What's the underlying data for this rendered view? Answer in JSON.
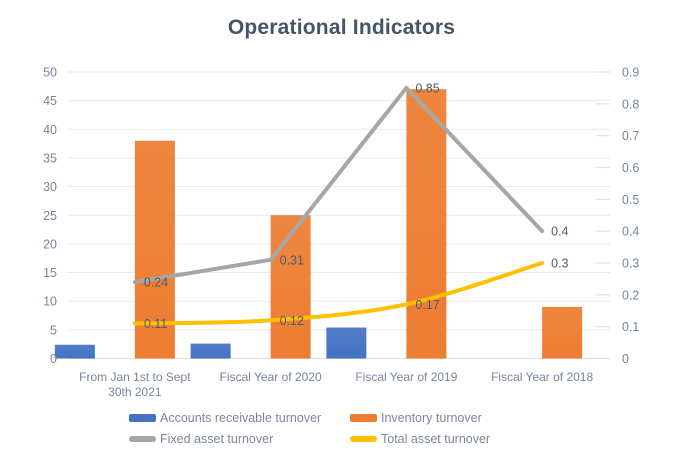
{
  "title": "Operational Indicators",
  "colors": {
    "background": "#FFFFFF",
    "title": "#44546A",
    "axis_label": "#76849E",
    "data_label": "#505B70",
    "legend_text": "#7C879B",
    "grid": "#E6E9F0",
    "axis_line": "#D8DDE6",
    "right_tick": "#DFE3EA",
    "blue": "#4472C4",
    "orange": "#ED7D31",
    "gray": "#A6A6A6",
    "yellow": "#FFC000"
  },
  "chart_data": {
    "type": "bar",
    "subtype": "combo-bar-line-dual-axis",
    "title": "Operational Indicators",
    "categories": [
      "From Jan 1st to Sept\n30th 2021",
      "Fiscal Year of 2020",
      "Fiscal Year of 2019",
      "Fiscal Year of  2018"
    ],
    "series": [
      {
        "name": "Accounts receivable turnover",
        "kind": "bar",
        "axis": "left",
        "color": "#4472C4",
        "values": [
          2.4,
          2.6,
          5.4,
          null
        ]
      },
      {
        "name": "Inventory turnover",
        "kind": "bar",
        "axis": "left",
        "color": "#ED7D31",
        "values": [
          38,
          25,
          47,
          9
        ]
      },
      {
        "name": "Fixed asset turnover",
        "kind": "line",
        "axis": "right",
        "color": "#A6A6A6",
        "smooth": false,
        "values": [
          0.24,
          0.31,
          0.85,
          0.4
        ],
        "data_labels": [
          "0.24",
          "0.31",
          "0.85",
          "0.4"
        ]
      },
      {
        "name": "Total asset turnover",
        "kind": "line",
        "axis": "right",
        "color": "#FFC000",
        "smooth": true,
        "values": [
          0.11,
          0.12,
          0.17,
          0.3
        ],
        "data_labels": [
          "0.11",
          "0.12",
          "0.17",
          "0.3"
        ]
      }
    ],
    "left_axis": {
      "min": 0,
      "max": 50,
      "step": 5,
      "tick_labels": [
        "0",
        "5",
        "10",
        "15",
        "20",
        "25",
        "30",
        "35",
        "40",
        "45",
        "50"
      ]
    },
    "right_axis": {
      "min": 0,
      "max": 0.9,
      "step": 0.1,
      "tick_labels": [
        "0",
        "0.1",
        "0.2",
        "0.3",
        "0.4",
        "0.5",
        "0.6",
        "0.7",
        "0.8",
        "0.9"
      ]
    },
    "grid": true,
    "legend_position": "bottom"
  },
  "legend": {
    "items": [
      {
        "label": "Accounts receivable turnover",
        "marker": "bar",
        "color": "#4472C4"
      },
      {
        "label": "Inventory turnover",
        "marker": "bar",
        "color": "#ED7D31"
      },
      {
        "label": "Fixed asset turnover",
        "marker": "line",
        "color": "#A6A6A6"
      },
      {
        "label": "Total asset turnover",
        "marker": "line",
        "color": "#FFC000"
      }
    ]
  }
}
